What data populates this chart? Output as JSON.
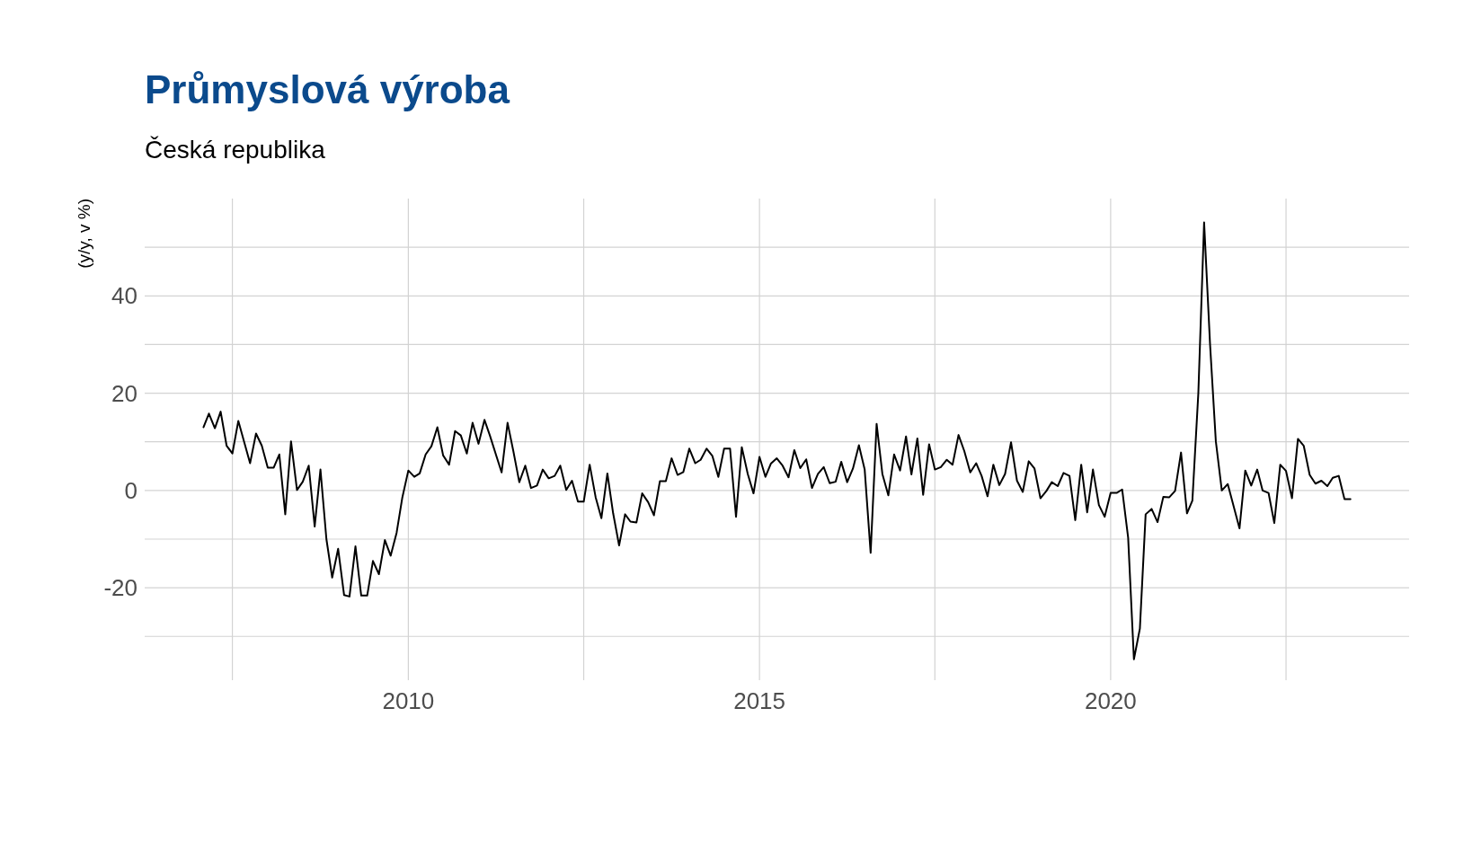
{
  "chart_data": {
    "type": "line",
    "title": "Průmyslová výroba",
    "subtitle": "Česká republika",
    "ylabel": "(y/y, v %)",
    "x": [
      "2007-02",
      "2007-03",
      "2007-04",
      "2007-05",
      "2007-06",
      "2007-07",
      "2007-08",
      "2007-10",
      "2007-11",
      "2007-12",
      "2008-01",
      "2008-02",
      "2008-03",
      "2008-04",
      "2008-05",
      "2008-06",
      "2008-07",
      "2008-08",
      "2008-09",
      "2008-10",
      "2008-11",
      "2008-12",
      "2009-01",
      "2009-02",
      "2009-03",
      "2009-04",
      "2009-05",
      "2009-06",
      "2009-07",
      "2009-08",
      "2009-09",
      "2009-10",
      "2009-11",
      "2009-12",
      "2010-01",
      "2010-02",
      "2010-03",
      "2010-04",
      "2010-05",
      "2010-06",
      "2010-07",
      "2010-08",
      "2010-09",
      "2010-10",
      "2010-11",
      "2010-12",
      "2011-01",
      "2011-02",
      "2011-03",
      "2011-05",
      "2011-06",
      "2011-07",
      "2011-08",
      "2011-09",
      "2011-10",
      "2011-11",
      "2011-12",
      "2012-01",
      "2012-02",
      "2012-03",
      "2012-04",
      "2012-05",
      "2012-06",
      "2012-07",
      "2012-08",
      "2012-09",
      "2012-10",
      "2012-11",
      "2012-12",
      "2013-01",
      "2013-02",
      "2013-03",
      "2013-04",
      "2013-05",
      "2013-06",
      "2013-07",
      "2013-08",
      "2013-09",
      "2013-10",
      "2013-11",
      "2013-12",
      "2014-01",
      "2014-02",
      "2014-03",
      "2014-04",
      "2014-05",
      "2014-06",
      "2014-07",
      "2014-08",
      "2014-09",
      "2014-10",
      "2014-11",
      "2014-12",
      "2015-01",
      "2015-02",
      "2015-03",
      "2015-04",
      "2015-05",
      "2015-06",
      "2015-07",
      "2015-08",
      "2015-09",
      "2015-10",
      "2015-11",
      "2015-12",
      "2016-01",
      "2016-02",
      "2016-03",
      "2016-04",
      "2016-05",
      "2016-06",
      "2016-07",
      "2016-08",
      "2016-09",
      "2016-10",
      "2016-11",
      "2016-12",
      "2017-01",
      "2017-02",
      "2017-03",
      "2017-04",
      "2017-05",
      "2017-06",
      "2017-07",
      "2017-08",
      "2017-09",
      "2017-10",
      "2017-11",
      "2017-12",
      "2018-01",
      "2018-02",
      "2018-03",
      "2018-04",
      "2018-05",
      "2018-06",
      "2018-07",
      "2018-08",
      "2018-09",
      "2018-10",
      "2018-11",
      "2018-12",
      "2019-01",
      "2019-02",
      "2019-03",
      "2019-04",
      "2019-05",
      "2019-06",
      "2019-07",
      "2019-08",
      "2019-09",
      "2019-10",
      "2019-11",
      "2019-12",
      "2020-01",
      "2020-02",
      "2020-03",
      "2020-04",
      "2020-05",
      "2020-06",
      "2020-07",
      "2020-08",
      "2020-09",
      "2020-10",
      "2020-11",
      "2020-12",
      "2021-01",
      "2021-02",
      "2021-03",
      "2021-04",
      "2021-05",
      "2021-06",
      "2021-07",
      "2021-08",
      "2021-09",
      "2021-11",
      "2021-12",
      "2022-01",
      "2022-02",
      "2022-03",
      "2022-04",
      "2022-05",
      "2022-06",
      "2022-07",
      "2022-08",
      "2022-09",
      "2022-10",
      "2022-11",
      "2022-12",
      "2023-01",
      "2023-02",
      "2023-03",
      "2023-04",
      "2023-05",
      "2023-06"
    ],
    "series": [
      {
        "color": "#000000",
        "values": [
          13.0,
          15.8,
          12.8,
          16.2,
          9.2,
          7.6,
          14.3,
          5.6,
          11.7,
          9.2,
          4.7,
          4.7,
          7.4,
          -4.9,
          10.1,
          0.1,
          1.8,
          5.1,
          -7.4,
          4.3,
          -10,
          -17.9,
          -12,
          -21.5,
          -21.8,
          -11.5,
          -21.6,
          -21.6,
          -14.5,
          -17.2,
          -10.2,
          -13.4,
          -8.7,
          -1.4,
          4.1,
          2.8,
          3.5,
          7.4,
          9.1,
          13.0,
          7.2,
          5.3,
          12.2,
          11.3,
          7.6,
          13.9,
          9.6,
          14.5,
          11.3,
          3.7,
          13.9,
          8.1,
          1.7,
          5.1,
          0.5,
          1.0,
          4.3,
          2.5,
          3.0,
          5.1,
          0.1,
          2.0,
          -2.3,
          -2.3,
          5.3,
          -1.4,
          -5.7,
          3.5,
          -4.7,
          -11.3,
          -4.9,
          -6.4,
          -6.6,
          -0.6,
          -2.4,
          -5.1,
          1.9,
          1.9,
          6.6,
          3.2,
          3.8,
          8.6,
          5.6,
          6.3,
          8.6,
          7.1,
          2.8,
          8.6,
          8.6,
          -5.4,
          8.9,
          3.4,
          -0.6,
          6.9,
          2.8,
          5.5,
          6.6,
          5.1,
          2.7,
          8.3,
          4.6,
          6.4,
          0.5,
          3.4,
          4.8,
          1.5,
          1.8,
          5.9,
          1.7,
          4.5,
          9.3,
          4.3,
          -12.8,
          13.7,
          3.4,
          -1.0,
          7.4,
          4.1,
          11.1,
          3.3,
          10.7,
          -0.9,
          9.5,
          4.3,
          4.8,
          6.3,
          5.3,
          11.4,
          8.1,
          3.7,
          5.6,
          3.0,
          -1.2,
          5.3,
          1.1,
          3.4,
          9.9,
          2.0,
          -0.3,
          6.0,
          4.5,
          -1.6,
          -0.1,
          1.7,
          0.9,
          3.6,
          3.0,
          -6.1,
          5.3,
          -4.5,
          4.3,
          -3.0,
          -5.4,
          -0.5,
          -0.5,
          0.2,
          -9.7,
          -34.7,
          -28.4,
          -4.9,
          -3.8,
          -6.5,
          -1.3,
          -1.4,
          -0.1,
          7.8,
          -4.7,
          -2.1,
          20,
          55.1,
          30,
          10.1,
          0,
          1.3,
          -7.8,
          4.1,
          1.0,
          4.3,
          0,
          -0.5,
          -6.7,
          5.3,
          4.0,
          -1.6,
          10.6,
          9.2,
          3.2,
          1.4,
          2.0,
          0.9,
          2.6,
          3.0,
          -1.8,
          -1.8
        ]
      }
    ],
    "xlim": [
      "2006-04",
      "2024-04"
    ],
    "xticks": [
      {
        "value": "2007-07",
        "label": null
      },
      {
        "value": "2010",
        "label": "2010"
      },
      {
        "value": "2012-07",
        "label": null
      },
      {
        "value": "2015",
        "label": "2015"
      },
      {
        "value": "2017-07",
        "label": null
      },
      {
        "value": "2020",
        "label": "2020"
      },
      {
        "value": "2022-07",
        "label": null
      }
    ],
    "ylim": [
      -39,
      60
    ],
    "yticks": [
      {
        "value": -30,
        "label": null
      },
      -20,
      {
        "value": -10,
        "label": null
      },
      0,
      {
        "value": 10,
        "label": null
      },
      20,
      {
        "value": 30,
        "label": null
      },
      40,
      {
        "value": 50,
        "label": null
      }
    ],
    "grid": true
  }
}
